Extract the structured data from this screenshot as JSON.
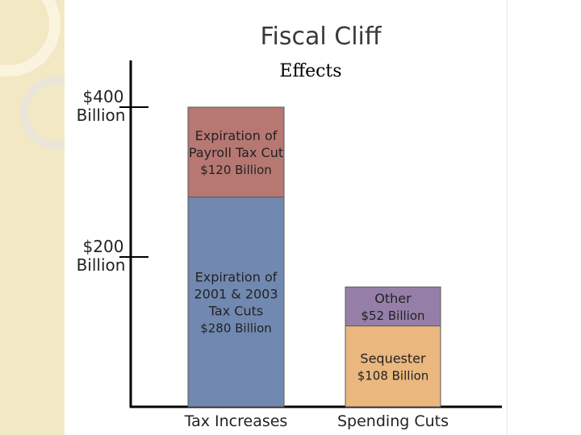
{
  "slide": {
    "title": "Fiscal Cliff",
    "subtitle": "Effects"
  },
  "colors": {
    "background_strip": "#f3e8c4",
    "payroll_segment": "#b77873",
    "tax_cuts_segment": "#7189b0",
    "other_segment": "#957fa8",
    "sequester_segment": "#eab77e"
  },
  "chart_data": {
    "type": "bar",
    "stacked": true,
    "title": "",
    "xlabel": "",
    "ylabel": "",
    "ylim": [
      0,
      400
    ],
    "y_ticks": [
      {
        "value": 400,
        "line1": "$400",
        "line2": "Billion"
      },
      {
        "value": 200,
        "line1": "$200",
        "line2": "Billion"
      }
    ],
    "categories": [
      "Tax Increases",
      "Spending Cuts"
    ],
    "bars": [
      {
        "category": "Tax Increases",
        "segments": [
          {
            "value": 280,
            "color": "#7189b0",
            "label_lines": [
              "Expiration of",
              "2001 & 2003",
              "Tax Cuts",
              "$280 Billion"
            ]
          },
          {
            "value": 120,
            "color": "#b77873",
            "label_lines": [
              "Expiration of",
              "Payroll Tax Cut",
              "$120 Billion"
            ]
          }
        ]
      },
      {
        "category": "Spending Cuts",
        "segments": [
          {
            "value": 108,
            "color": "#eab77e",
            "label_lines": [
              "Sequester",
              "$108 Billion"
            ]
          },
          {
            "value": 52,
            "color": "#957fa8",
            "label_lines": [
              "Other",
              "$52 Billion"
            ]
          }
        ]
      }
    ],
    "grid": false,
    "legend": "none"
  }
}
